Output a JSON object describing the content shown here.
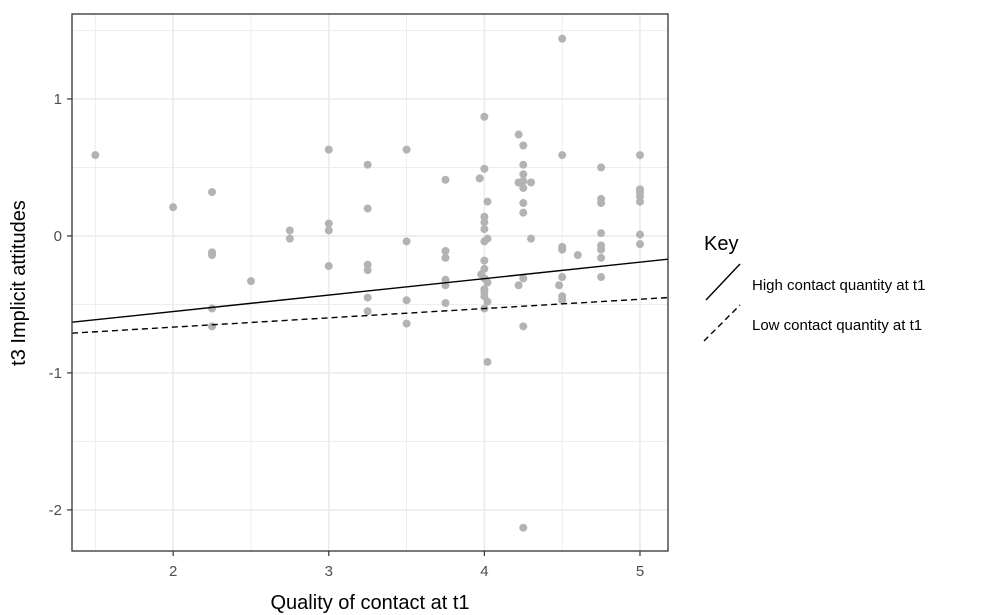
{
  "chart_data": {
    "type": "scatter",
    "title": "",
    "xlabel": "Quality of contact at t1",
    "ylabel": "t3 Implicit attitudes",
    "xlim": [
      1.35,
      5.18
    ],
    "ylim": [
      -2.3,
      1.62
    ],
    "x_ticks": [
      2,
      3,
      4,
      5
    ],
    "y_ticks": [
      -2,
      -1,
      0,
      1
    ],
    "x_tick_labels": [
      "2",
      "3",
      "4",
      "5"
    ],
    "y_tick_labels": [
      "-2",
      "-1",
      "0",
      "1"
    ],
    "grid": true,
    "legend_position": "right",
    "legend": {
      "title": "Key",
      "entries": [
        {
          "label": "High contact quantity at t1",
          "style": "solid"
        },
        {
          "label": "Low contact quantity at t1",
          "style": "dashed"
        }
      ]
    },
    "colors": {
      "points": "#b3b3b3",
      "lines": "#000000",
      "grid": "#ebebeb",
      "panel_border": "#333333"
    },
    "lines": [
      {
        "legend_index": 0,
        "style": "solid",
        "x": [
          1.35,
          5.18
        ],
        "y": [
          -0.63,
          -0.17
        ]
      },
      {
        "legend_index": 1,
        "style": "dashed",
        "x": [
          1.35,
          5.18
        ],
        "y": [
          -0.71,
          -0.45
        ]
      }
    ],
    "points": [
      {
        "x": 1.5,
        "y": 0.59
      },
      {
        "x": 2.0,
        "y": 0.21
      },
      {
        "x": 2.25,
        "y": 0.32
      },
      {
        "x": 2.25,
        "y": -0.12
      },
      {
        "x": 2.25,
        "y": -0.14
      },
      {
        "x": 2.25,
        "y": -0.53
      },
      {
        "x": 2.25,
        "y": -0.66
      },
      {
        "x": 2.5,
        "y": -0.33
      },
      {
        "x": 2.75,
        "y": 0.04
      },
      {
        "x": 2.75,
        "y": -0.02
      },
      {
        "x": 3.0,
        "y": 0.63
      },
      {
        "x": 3.0,
        "y": 0.09
      },
      {
        "x": 3.0,
        "y": 0.04
      },
      {
        "x": 3.0,
        "y": -0.22
      },
      {
        "x": 3.25,
        "y": 0.52
      },
      {
        "x": 3.25,
        "y": 0.2
      },
      {
        "x": 3.25,
        "y": -0.21
      },
      {
        "x": 3.25,
        "y": -0.25
      },
      {
        "x": 3.25,
        "y": -0.45
      },
      {
        "x": 3.25,
        "y": -0.55
      },
      {
        "x": 3.5,
        "y": 0.63
      },
      {
        "x": 3.5,
        "y": -0.04
      },
      {
        "x": 3.5,
        "y": -0.47
      },
      {
        "x": 3.5,
        "y": -0.64
      },
      {
        "x": 3.75,
        "y": 0.41
      },
      {
        "x": 3.75,
        "y": -0.11
      },
      {
        "x": 3.75,
        "y": -0.16
      },
      {
        "x": 3.75,
        "y": -0.32
      },
      {
        "x": 3.75,
        "y": -0.36
      },
      {
        "x": 3.75,
        "y": -0.49
      },
      {
        "x": 3.97,
        "y": 0.42
      },
      {
        "x": 3.98,
        "y": -0.28
      },
      {
        "x": 4.0,
        "y": 0.87
      },
      {
        "x": 4.0,
        "y": 0.49
      },
      {
        "x": 4.0,
        "y": 0.14
      },
      {
        "x": 4.0,
        "y": 0.1
      },
      {
        "x": 4.0,
        "y": 0.05
      },
      {
        "x": 4.0,
        "y": -0.04
      },
      {
        "x": 4.0,
        "y": -0.18
      },
      {
        "x": 4.0,
        "y": -0.24
      },
      {
        "x": 4.0,
        "y": -0.31
      },
      {
        "x": 4.0,
        "y": -0.39
      },
      {
        "x": 4.0,
        "y": -0.41
      },
      {
        "x": 4.0,
        "y": -0.44
      },
      {
        "x": 4.0,
        "y": -0.53
      },
      {
        "x": 4.02,
        "y": 0.25
      },
      {
        "x": 4.02,
        "y": -0.02
      },
      {
        "x": 4.02,
        "y": -0.34
      },
      {
        "x": 4.02,
        "y": -0.48
      },
      {
        "x": 4.02,
        "y": -0.92
      },
      {
        "x": 4.22,
        "y": 0.74
      },
      {
        "x": 4.22,
        "y": 0.39
      },
      {
        "x": 4.22,
        "y": -0.36
      },
      {
        "x": 4.25,
        "y": 0.66
      },
      {
        "x": 4.25,
        "y": 0.52
      },
      {
        "x": 4.25,
        "y": 0.45
      },
      {
        "x": 4.25,
        "y": 0.4
      },
      {
        "x": 4.25,
        "y": 0.35
      },
      {
        "x": 4.25,
        "y": 0.24
      },
      {
        "x": 4.25,
        "y": 0.17
      },
      {
        "x": 4.25,
        "y": -0.31
      },
      {
        "x": 4.25,
        "y": -0.66
      },
      {
        "x": 4.25,
        "y": -2.13
      },
      {
        "x": 4.3,
        "y": 0.39
      },
      {
        "x": 4.3,
        "y": -0.02
      },
      {
        "x": 4.5,
        "y": 1.44
      },
      {
        "x": 4.5,
        "y": 0.59
      },
      {
        "x": 4.5,
        "y": -0.08
      },
      {
        "x": 4.5,
        "y": -0.1
      },
      {
        "x": 4.5,
        "y": -0.3
      },
      {
        "x": 4.5,
        "y": -0.44
      },
      {
        "x": 4.5,
        "y": -0.47
      },
      {
        "x": 4.48,
        "y": -0.36
      },
      {
        "x": 4.6,
        "y": -0.14
      },
      {
        "x": 4.75,
        "y": 0.5
      },
      {
        "x": 4.75,
        "y": 0.27
      },
      {
        "x": 4.75,
        "y": 0.24
      },
      {
        "x": 4.75,
        "y": 0.02
      },
      {
        "x": 4.75,
        "y": -0.07
      },
      {
        "x": 4.75,
        "y": -0.1
      },
      {
        "x": 4.75,
        "y": -0.16
      },
      {
        "x": 4.75,
        "y": -0.3
      },
      {
        "x": 5.0,
        "y": 0.59
      },
      {
        "x": 5.0,
        "y": 0.34
      },
      {
        "x": 5.0,
        "y": 0.32
      },
      {
        "x": 5.0,
        "y": 0.29
      },
      {
        "x": 5.0,
        "y": 0.25
      },
      {
        "x": 5.0,
        "y": 0.01
      },
      {
        "x": 5.0,
        "y": -0.06
      }
    ]
  }
}
